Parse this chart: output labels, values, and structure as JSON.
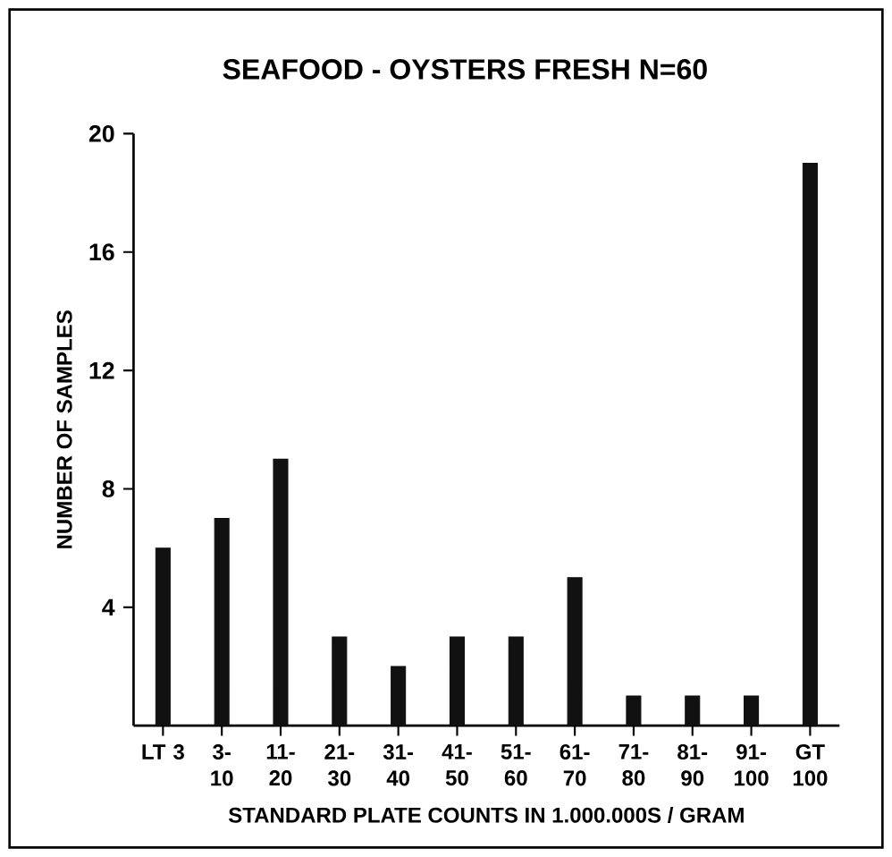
{
  "chart_data": {
    "type": "bar",
    "title": "SEAFOOD - OYSTERS FRESH  N=60",
    "xlabel": "STANDARD PLATE COUNTS IN 1.000.000S / GRAM",
    "ylabel": "NUMBER OF SAMPLES",
    "categories": [
      "LT 3",
      "3- 10",
      "11- 20",
      "21- 30",
      "31- 40",
      "41- 50",
      "51- 60",
      "61- 70",
      "71- 80",
      "81- 90",
      "91- 100",
      "GT 100"
    ],
    "values": [
      6,
      7,
      9,
      3,
      2,
      3,
      3,
      5,
      1,
      1,
      1,
      19
    ],
    "color": "#111111",
    "ylim": [
      0,
      20
    ],
    "yticks": [
      4,
      8,
      12,
      16,
      20
    ],
    "grid": false
  }
}
